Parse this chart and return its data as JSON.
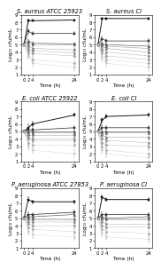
{
  "titles": [
    [
      "S. aureus ATCC 25923",
      "S. aureus CI"
    ],
    [
      "E. coli ATCC 25922",
      "E. coli CI"
    ],
    [
      "P. aeruginosa ATCC 27853",
      "P. aeruginosa CI"
    ]
  ],
  "time_points": [
    0,
    2,
    4,
    24
  ],
  "ylabel": "Log₁₀ cfu/mL",
  "xlabel": "Time (h)",
  "ylim": [
    1,
    9
  ],
  "yticks": [
    1,
    2,
    3,
    4,
    5,
    6,
    7,
    8,
    9
  ],
  "xticks": [
    0,
    2,
    4,
    24
  ],
  "panels": [
    {
      "name": "S_aureus_ATCC",
      "lines": [
        {
          "values": [
            5.0,
            8.2,
            8.2,
            8.3
          ],
          "err": [
            0.1,
            0.15,
            0.1,
            0.1
          ],
          "style": "solid",
          "marker": "s",
          "color": "#111111",
          "lw": 1.5,
          "ms": 2.0
        },
        {
          "values": [
            5.0,
            6.8,
            6.5,
            6.5
          ],
          "err": [
            0.2,
            0.3,
            0.2,
            0.15
          ],
          "style": "solid",
          "marker": "s",
          "color": "#333333",
          "lw": 1.2,
          "ms": 1.8
        },
        {
          "values": [
            5.0,
            5.5,
            5.2,
            5.1
          ],
          "err": [
            0.15,
            0.3,
            0.2,
            0.2
          ],
          "style": "solid",
          "marker": "^",
          "color": "#555555",
          "lw": 1.0,
          "ms": 1.8
        },
        {
          "values": [
            5.0,
            5.2,
            5.0,
            5.0
          ],
          "err": [
            0.1,
            0.2,
            0.2,
            0.2
          ],
          "style": "dashed",
          "marker": "^",
          "color": "#666666",
          "lw": 0.8,
          "ms": 1.6
        },
        {
          "values": [
            5.0,
            4.8,
            4.5,
            4.3
          ],
          "err": [
            0.1,
            0.25,
            0.2,
            0.25
          ],
          "style": "dashed",
          "marker": "o",
          "color": "#777777",
          "lw": 0.8,
          "ms": 1.6
        },
        {
          "values": [
            5.0,
            4.5,
            4.2,
            3.9
          ],
          "err": [
            0.1,
            0.3,
            0.25,
            0.3
          ],
          "style": "dashed",
          "marker": "o",
          "color": "#888888",
          "lw": 0.7,
          "ms": 1.5
        },
        {
          "values": [
            5.0,
            4.2,
            3.8,
            3.5
          ],
          "err": [
            0.1,
            0.3,
            0.3,
            0.3
          ],
          "style": "dashed",
          "marker": "D",
          "color": "#999999",
          "lw": 0.7,
          "ms": 1.5
        },
        {
          "values": [
            5.0,
            3.8,
            3.0,
            2.5
          ],
          "err": [
            0.1,
            0.4,
            0.35,
            0.4
          ],
          "style": "dashed",
          "marker": "D",
          "color": "#aaaaaa",
          "lw": 0.6,
          "ms": 1.4
        },
        {
          "values": [
            5.0,
            3.5,
            2.5,
            2.0
          ],
          "err": [
            0.1,
            0.4,
            0.4,
            0.5
          ],
          "style": "dashed",
          "marker": "v",
          "color": "#bbbbbb",
          "lw": 0.6,
          "ms": 1.4
        }
      ]
    },
    {
      "name": "S_aureus_CI",
      "lines": [
        {
          "values": [
            5.0,
            8.5,
            8.5,
            8.5
          ],
          "err": [
            0.1,
            0.1,
            0.1,
            0.1
          ],
          "style": "solid",
          "marker": "s",
          "color": "#111111",
          "lw": 1.5,
          "ms": 2.0
        },
        {
          "values": [
            5.0,
            5.8,
            5.5,
            5.5
          ],
          "err": [
            0.2,
            0.3,
            0.2,
            0.2
          ],
          "style": "solid",
          "marker": "s",
          "color": "#333333",
          "lw": 1.2,
          "ms": 1.8
        },
        {
          "values": [
            5.0,
            5.2,
            5.0,
            4.8
          ],
          "err": [
            0.15,
            0.25,
            0.2,
            0.2
          ],
          "style": "solid",
          "marker": "^",
          "color": "#555555",
          "lw": 1.0,
          "ms": 1.8
        },
        {
          "values": [
            5.0,
            5.0,
            4.8,
            4.5
          ],
          "err": [
            0.1,
            0.2,
            0.2,
            0.25
          ],
          "style": "dashed",
          "marker": "^",
          "color": "#666666",
          "lw": 0.8,
          "ms": 1.6
        },
        {
          "values": [
            5.0,
            4.8,
            4.5,
            4.0
          ],
          "err": [
            0.1,
            0.25,
            0.2,
            0.3
          ],
          "style": "dashed",
          "marker": "o",
          "color": "#777777",
          "lw": 0.8,
          "ms": 1.6
        },
        {
          "values": [
            5.0,
            4.5,
            4.0,
            3.5
          ],
          "err": [
            0.1,
            0.3,
            0.25,
            0.35
          ],
          "style": "dashed",
          "marker": "o",
          "color": "#888888",
          "lw": 0.7,
          "ms": 1.5
        },
        {
          "values": [
            5.0,
            4.2,
            3.5,
            3.0
          ],
          "err": [
            0.1,
            0.3,
            0.3,
            0.35
          ],
          "style": "dashed",
          "marker": "D",
          "color": "#999999",
          "lw": 0.7,
          "ms": 1.5
        },
        {
          "values": [
            5.0,
            3.8,
            3.0,
            2.5
          ],
          "err": [
            0.1,
            0.4,
            0.35,
            0.4
          ],
          "style": "dashed",
          "marker": "D",
          "color": "#aaaaaa",
          "lw": 0.6,
          "ms": 1.4
        },
        {
          "values": [
            5.0,
            3.2,
            2.5,
            2.0
          ],
          "err": [
            0.1,
            0.45,
            0.4,
            0.5
          ],
          "style": "dashed",
          "marker": "v",
          "color": "#bbbbbb",
          "lw": 0.6,
          "ms": 1.4
        }
      ]
    },
    {
      "name": "E_coli_ATCC",
      "lines": [
        {
          "values": [
            5.0,
            5.5,
            6.0,
            7.2
          ],
          "err": [
            0.1,
            0.4,
            0.3,
            0.2
          ],
          "style": "solid",
          "marker": "s",
          "color": "#111111",
          "lw": 1.5,
          "ms": 2.0
        },
        {
          "values": [
            5.0,
            5.2,
            5.2,
            5.5
          ],
          "err": [
            0.15,
            0.3,
            0.25,
            0.2
          ],
          "style": "solid",
          "marker": "s",
          "color": "#333333",
          "lw": 1.2,
          "ms": 1.8
        },
        {
          "values": [
            5.0,
            5.0,
            5.0,
            5.0
          ],
          "err": [
            0.1,
            0.3,
            0.2,
            0.15
          ],
          "style": "solid",
          "marker": "^",
          "color": "#555555",
          "lw": 1.0,
          "ms": 1.8
        },
        {
          "values": [
            5.0,
            4.8,
            4.8,
            4.8
          ],
          "err": [
            0.1,
            0.25,
            0.2,
            0.2
          ],
          "style": "dashed",
          "marker": "^",
          "color": "#666666",
          "lw": 0.8,
          "ms": 1.6
        },
        {
          "values": [
            5.0,
            4.5,
            4.5,
            4.5
          ],
          "err": [
            0.1,
            0.3,
            0.2,
            0.2
          ],
          "style": "dashed",
          "marker": "o",
          "color": "#777777",
          "lw": 0.8,
          "ms": 1.6
        },
        {
          "values": [
            5.0,
            4.2,
            4.0,
            4.0
          ],
          "err": [
            0.1,
            0.3,
            0.25,
            0.25
          ],
          "style": "dashed",
          "marker": "o",
          "color": "#888888",
          "lw": 0.7,
          "ms": 1.5
        },
        {
          "values": [
            5.0,
            4.0,
            3.8,
            3.8
          ],
          "err": [
            0.1,
            0.3,
            0.3,
            0.3
          ],
          "style": "dashed",
          "marker": "D",
          "color": "#999999",
          "lw": 0.7,
          "ms": 1.5
        },
        {
          "values": [
            5.0,
            3.5,
            3.2,
            3.2
          ],
          "err": [
            0.1,
            0.4,
            0.35,
            0.35
          ],
          "style": "dashed",
          "marker": "D",
          "color": "#aaaaaa",
          "lw": 0.6,
          "ms": 1.4
        },
        {
          "values": [
            5.0,
            3.0,
            2.5,
            2.0
          ],
          "err": [
            0.1,
            0.5,
            0.4,
            0.5
          ],
          "style": "dashed",
          "marker": "v",
          "color": "#bbbbbb",
          "lw": 0.6,
          "ms": 1.4
        }
      ]
    },
    {
      "name": "E_coli_CI",
      "lines": [
        {
          "values": [
            5.0,
            6.5,
            7.0,
            7.2
          ],
          "err": [
            0.1,
            0.3,
            0.2,
            0.2
          ],
          "style": "solid",
          "marker": "s",
          "color": "#111111",
          "lw": 1.5,
          "ms": 2.0
        },
        {
          "values": [
            5.0,
            5.5,
            5.5,
            5.5
          ],
          "err": [
            0.15,
            0.3,
            0.2,
            0.2
          ],
          "style": "solid",
          "marker": "s",
          "color": "#333333",
          "lw": 1.2,
          "ms": 1.8
        },
        {
          "values": [
            5.0,
            5.0,
            5.0,
            5.0
          ],
          "err": [
            0.1,
            0.3,
            0.2,
            0.15
          ],
          "style": "solid",
          "marker": "^",
          "color": "#555555",
          "lw": 1.0,
          "ms": 1.8
        },
        {
          "values": [
            5.0,
            4.8,
            4.8,
            4.8
          ],
          "err": [
            0.1,
            0.25,
            0.2,
            0.2
          ],
          "style": "dashed",
          "marker": "^",
          "color": "#666666",
          "lw": 0.8,
          "ms": 1.6
        },
        {
          "values": [
            5.0,
            4.5,
            4.2,
            4.2
          ],
          "err": [
            0.1,
            0.3,
            0.2,
            0.2
          ],
          "style": "dashed",
          "marker": "o",
          "color": "#777777",
          "lw": 0.8,
          "ms": 1.6
        },
        {
          "values": [
            5.0,
            4.0,
            3.8,
            3.5
          ],
          "err": [
            0.1,
            0.35,
            0.3,
            0.3
          ],
          "style": "dashed",
          "marker": "o",
          "color": "#888888",
          "lw": 0.7,
          "ms": 1.5
        },
        {
          "values": [
            5.0,
            3.5,
            3.2,
            3.0
          ],
          "err": [
            0.1,
            0.4,
            0.35,
            0.35
          ],
          "style": "dashed",
          "marker": "D",
          "color": "#999999",
          "lw": 0.7,
          "ms": 1.5
        },
        {
          "values": [
            5.0,
            3.0,
            2.5,
            2.0
          ],
          "err": [
            0.1,
            0.5,
            0.4,
            0.5
          ],
          "style": "dashed",
          "marker": "D",
          "color": "#aaaaaa",
          "lw": 0.6,
          "ms": 1.4
        },
        {
          "values": [
            5.0,
            2.5,
            2.0,
            1.5
          ],
          "err": [
            0.1,
            0.5,
            0.5,
            0.5
          ],
          "style": "dashed",
          "marker": "v",
          "color": "#bbbbbb",
          "lw": 0.6,
          "ms": 1.4
        }
      ]
    },
    {
      "name": "P_aeruginosa_ATCC",
      "lines": [
        {
          "values": [
            5.0,
            7.5,
            7.2,
            7.2
          ],
          "err": [
            0.1,
            0.3,
            0.2,
            0.2
          ],
          "style": "solid",
          "marker": "s",
          "color": "#111111",
          "lw": 1.5,
          "ms": 2.0
        },
        {
          "values": [
            5.0,
            5.5,
            5.5,
            5.8
          ],
          "err": [
            0.15,
            0.3,
            0.2,
            0.2
          ],
          "style": "solid",
          "marker": "s",
          "color": "#333333",
          "lw": 1.2,
          "ms": 1.8
        },
        {
          "values": [
            5.0,
            5.2,
            5.2,
            5.5
          ],
          "err": [
            0.1,
            0.25,
            0.2,
            0.2
          ],
          "style": "solid",
          "marker": "^",
          "color": "#555555",
          "lw": 1.0,
          "ms": 1.8
        },
        {
          "values": [
            5.0,
            5.0,
            5.0,
            5.0
          ],
          "err": [
            0.1,
            0.2,
            0.2,
            0.2
          ],
          "style": "dashed",
          "marker": "^",
          "color": "#666666",
          "lw": 0.8,
          "ms": 1.6
        },
        {
          "values": [
            5.0,
            4.8,
            4.8,
            4.8
          ],
          "err": [
            0.1,
            0.25,
            0.2,
            0.2
          ],
          "style": "dashed",
          "marker": "o",
          "color": "#777777",
          "lw": 0.8,
          "ms": 1.6
        },
        {
          "values": [
            5.0,
            4.5,
            4.5,
            4.5
          ],
          "err": [
            0.1,
            0.3,
            0.25,
            0.25
          ],
          "style": "dashed",
          "marker": "o",
          "color": "#888888",
          "lw": 0.7,
          "ms": 1.5
        },
        {
          "values": [
            5.0,
            4.2,
            4.0,
            4.0
          ],
          "err": [
            0.1,
            0.3,
            0.3,
            0.3
          ],
          "style": "dashed",
          "marker": "D",
          "color": "#999999",
          "lw": 0.7,
          "ms": 1.5
        },
        {
          "values": [
            5.0,
            3.8,
            3.5,
            3.2
          ],
          "err": [
            0.1,
            0.4,
            0.35,
            0.35
          ],
          "style": "dashed",
          "marker": "D",
          "color": "#aaaaaa",
          "lw": 0.6,
          "ms": 1.4
        },
        {
          "values": [
            5.0,
            3.2,
            2.8,
            2.5
          ],
          "err": [
            0.1,
            0.45,
            0.4,
            0.4
          ],
          "style": "dashed",
          "marker": "v",
          "color": "#bbbbbb",
          "lw": 0.6,
          "ms": 1.4
        }
      ]
    },
    {
      "name": "P_aeruginosa_CI",
      "lines": [
        {
          "values": [
            5.0,
            7.8,
            7.5,
            7.5
          ],
          "err": [
            0.1,
            0.3,
            0.2,
            0.2
          ],
          "style": "solid",
          "marker": "s",
          "color": "#111111",
          "lw": 1.5,
          "ms": 2.0
        },
        {
          "values": [
            5.0,
            5.5,
            5.5,
            5.5
          ],
          "err": [
            0.15,
            0.3,
            0.2,
            0.2
          ],
          "style": "solid",
          "marker": "s",
          "color": "#333333",
          "lw": 1.2,
          "ms": 1.8
        },
        {
          "values": [
            5.0,
            5.2,
            5.0,
            5.2
          ],
          "err": [
            0.1,
            0.25,
            0.2,
            0.2
          ],
          "style": "solid",
          "marker": "^",
          "color": "#555555",
          "lw": 1.0,
          "ms": 1.8
        },
        {
          "values": [
            5.0,
            5.0,
            5.0,
            5.0
          ],
          "err": [
            0.1,
            0.2,
            0.2,
            0.2
          ],
          "style": "dashed",
          "marker": "^",
          "color": "#666666",
          "lw": 0.8,
          "ms": 1.6
        },
        {
          "values": [
            5.0,
            4.8,
            4.8,
            4.8
          ],
          "err": [
            0.1,
            0.25,
            0.2,
            0.2
          ],
          "style": "dashed",
          "marker": "o",
          "color": "#777777",
          "lw": 0.8,
          "ms": 1.6
        },
        {
          "values": [
            5.0,
            4.5,
            4.2,
            4.2
          ],
          "err": [
            0.1,
            0.3,
            0.25,
            0.25
          ],
          "style": "dashed",
          "marker": "o",
          "color": "#888888",
          "lw": 0.7,
          "ms": 1.5
        },
        {
          "values": [
            5.0,
            4.0,
            3.8,
            3.8
          ],
          "err": [
            0.1,
            0.35,
            0.3,
            0.3
          ],
          "style": "dashed",
          "marker": "D",
          "color": "#999999",
          "lw": 0.7,
          "ms": 1.5
        },
        {
          "values": [
            5.0,
            3.5,
            3.2,
            3.0
          ],
          "err": [
            0.1,
            0.4,
            0.35,
            0.35
          ],
          "style": "dashed",
          "marker": "D",
          "color": "#aaaaaa",
          "lw": 0.6,
          "ms": 1.4
        },
        {
          "values": [
            5.0,
            3.0,
            2.5,
            2.2
          ],
          "err": [
            0.1,
            0.5,
            0.4,
            0.4
          ],
          "style": "dashed",
          "marker": "v",
          "color": "#bbbbbb",
          "lw": 0.6,
          "ms": 1.4
        }
      ]
    }
  ],
  "background_color": "#ffffff",
  "title_fontsize": 4.8,
  "label_fontsize": 4.2,
  "tick_fontsize": 3.8
}
